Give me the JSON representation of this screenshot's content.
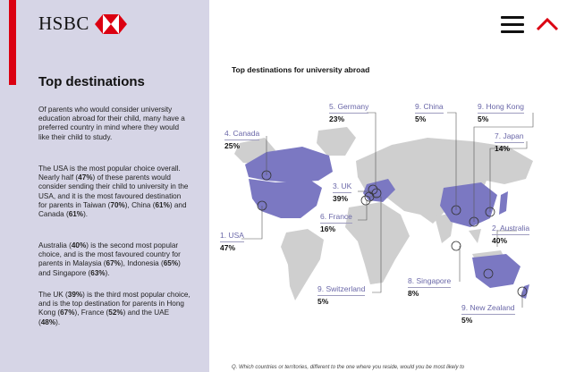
{
  "brand": {
    "name": "HSBC",
    "accent": "#db0011"
  },
  "nav": {
    "menu_icon": "hamburger-menu-icon",
    "collapse_icon": "chevron-up-icon"
  },
  "article": {
    "title": "Top destinations",
    "p1": "Of parents who would consider university education abroad for their child, many have a preferred country in mind where they would like their child to study.",
    "p2_a": "The USA is the most popular choice overall. Nearly half (",
    "p2_b": "47%",
    "p2_c": ") of these parents would consider sending their child to university in the USA, and it is the most favoured destination for parents in Taiwan (",
    "p2_d": "70%",
    "p2_e": "), China (",
    "p2_f": "61%",
    "p2_g": ") and Canada (",
    "p2_h": "61%",
    "p2_i": ").",
    "p3_a": "Australia (",
    "p3_b": "40%",
    "p3_c": ") is the second most popular choice, and is the most favoured country for parents in Malaysia (",
    "p3_d": "67%",
    "p3_e": "), Indonesia (",
    "p3_f": "65%",
    "p3_g": ") and Singapore (",
    "p3_h": "63%",
    "p3_i": ").",
    "p4_a": "The UK (",
    "p4_b": "39%",
    "p4_c": ") is the third most popular choice, and is the top destination for parents in Hong Kong (",
    "p4_d": "67%",
    "p4_e": "), France (",
    "p4_f": "52%",
    "p4_g": ") and the UAE (",
    "p4_h": "48%",
    "p4_i": ")."
  },
  "map": {
    "title": "Top destinations for university abroad",
    "highlight_color": "#7b78c2",
    "land_color": "#cfcfcf",
    "destinations": [
      {
        "rank": "1. USA",
        "pct": "47%"
      },
      {
        "rank": "2. Australia",
        "pct": "40%"
      },
      {
        "rank": "3. UK",
        "pct": "39%"
      },
      {
        "rank": "4. Canada",
        "pct": "25%"
      },
      {
        "rank": "5. Germany",
        "pct": "23%"
      },
      {
        "rank": "6. France",
        "pct": "16%"
      },
      {
        "rank": "7. Japan",
        "pct": "14%"
      },
      {
        "rank": "8. Singapore",
        "pct": "8%"
      },
      {
        "rank": "9. China",
        "pct": "5%"
      },
      {
        "rank": "9. Hong Kong",
        "pct": "5%"
      },
      {
        "rank": "9. Switzerland",
        "pct": "5%"
      },
      {
        "rank": "9. New Zealand",
        "pct": "5%"
      }
    ]
  },
  "footnote": "Q. Which countries or territories, different to the one where you reside, would you be most likely to"
}
